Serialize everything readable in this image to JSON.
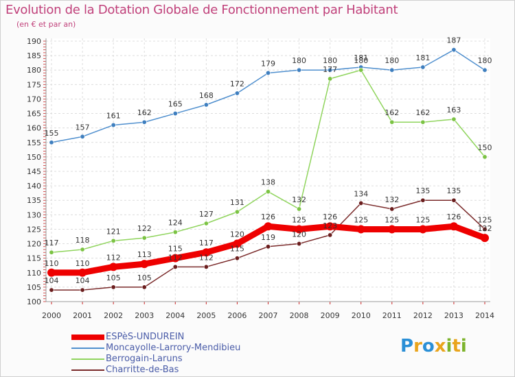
{
  "header": {
    "title": "Evolution de la Dotation Globale de Fonctionnement par Habitant",
    "subtitle": "(en € et par an)"
  },
  "logo": {
    "letters": [
      "P",
      "r",
      "o",
      "x",
      "i",
      "t",
      "i"
    ],
    "colors": [
      "#2a8fd6",
      "#e9a41c",
      "#2a8fd6",
      "#e9a41c",
      "#7cb32b",
      "#e9a41c",
      "#7cb32b"
    ]
  },
  "chart_data": {
    "type": "line",
    "x": [
      "2000",
      "2001",
      "2002",
      "2003",
      "2004",
      "2005",
      "2006",
      "2007",
      "2008",
      "2009",
      "2010",
      "2011",
      "2012",
      "2013",
      "2014"
    ],
    "ylim": [
      100,
      190
    ],
    "yticks": [
      "100",
      "105",
      "110",
      "115",
      "120",
      "125",
      "130",
      "135",
      "140",
      "145",
      "150",
      "155",
      "160",
      "165",
      "170",
      "175",
      "180",
      "185",
      "190"
    ],
    "grid": true,
    "legend_position": "bottom-left",
    "series": [
      {
        "name": "Moncayolle-Larrory-Mendibieu",
        "color": "#4f8fce",
        "marker": "#3f7fbf",
        "values": [
          155,
          157,
          161,
          162,
          165,
          168,
          172,
          179,
          180,
          180,
          181,
          180,
          181,
          187,
          180
        ],
        "labels": [
          "155",
          "157",
          "161",
          "162",
          "165",
          "168",
          "172",
          "179",
          "180",
          "180",
          "181",
          "180",
          "181",
          "187",
          "180"
        ]
      },
      {
        "name": "Berrogain-Laruns",
        "color": "#8fd45c",
        "marker": "#7cc344",
        "values": [
          117,
          118,
          121,
          122,
          124,
          127,
          131,
          138,
          132,
          177,
          180,
          162,
          162,
          163,
          150
        ],
        "labels": [
          "117",
          "118",
          "121",
          "122",
          "124",
          "127",
          "131",
          "138",
          "132",
          "177",
          "180",
          "162",
          "162",
          "163",
          "150"
        ]
      },
      {
        "name": "Charritte-de-Bas",
        "color": "#7a2a2a",
        "marker": "#6b1e1e",
        "values": [
          104,
          104,
          105,
          105,
          112,
          112,
          115,
          119,
          120,
          123,
          134,
          132,
          135,
          135,
          125
        ],
        "labels": [
          "104",
          "104",
          "105",
          "105",
          "112",
          "112",
          "115",
          "119",
          "120",
          "123",
          "134",
          "132",
          "135",
          "135",
          "125"
        ]
      },
      {
        "name": "ESPèS-UNDUREIN",
        "color": "#ee0000",
        "marker": "#ee0000",
        "values": [
          110,
          110,
          112,
          113,
          115,
          117,
          120,
          126,
          125,
          126,
          125,
          125,
          125,
          126,
          122
        ],
        "labels": [
          "110",
          "110",
          "112",
          "113",
          "115",
          "117",
          "120",
          "126",
          "125",
          "126",
          "125",
          "125",
          "125",
          "126",
          "122"
        ]
      }
    ],
    "legend": [
      {
        "name": "ESPèS-UNDUREIN",
        "color": "#ee0000",
        "thick": true
      },
      {
        "name": "Moncayolle-Larrory-Mendibieu",
        "color": "#4f8fce",
        "thick": false
      },
      {
        "name": "Berrogain-Laruns",
        "color": "#8fd45c",
        "thick": false
      },
      {
        "name": "Charritte-de-Bas",
        "color": "#7a2a2a",
        "thick": false
      }
    ]
  }
}
